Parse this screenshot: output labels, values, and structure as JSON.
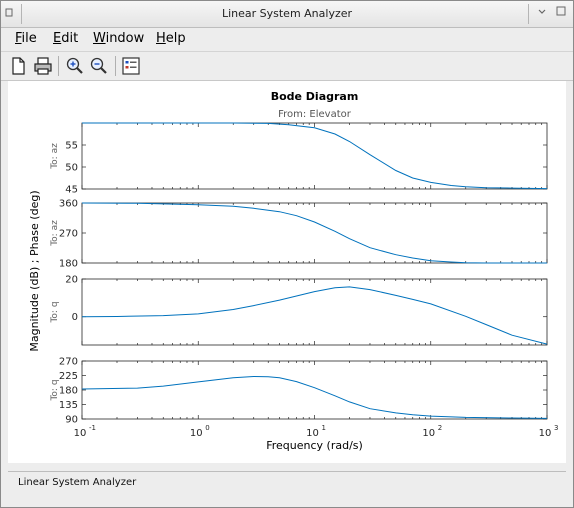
{
  "window": {
    "title": "Linear System Analyzer",
    "menu": [
      {
        "label": "File",
        "mnemonic": "F",
        "rest": "ile"
      },
      {
        "label": "Edit",
        "mnemonic": "E",
        "rest": "dit"
      },
      {
        "label": "Window",
        "mnemonic": "W",
        "rest": "indow"
      },
      {
        "label": "Help",
        "mnemonic": "H",
        "rest": "elp"
      }
    ],
    "toolbar": [
      "new-file-icon",
      "print-icon",
      "zoom-in-icon",
      "zoom-out-icon",
      "legend-icon"
    ],
    "status": "Linear System Analyzer"
  },
  "chart_data": {
    "type": "line",
    "title": "Bode Diagram",
    "subtitle": "From: Elevator",
    "xlabel": "Frequency  (rad/s)",
    "ylabel": "Magnitude (dB) ; Phase (deg)",
    "xscale": "log",
    "xlim": [
      0.1,
      1000
    ],
    "xticks": [
      0.1,
      1,
      10,
      100,
      1000
    ],
    "xtick_labels": [
      "10",
      "10",
      "10",
      "10",
      "10"
    ],
    "xtick_exponents": [
      "-1",
      "0",
      "1",
      "2",
      "3"
    ],
    "line_color": "#0072bd",
    "grid": false,
    "panels": [
      {
        "name": "To: az",
        "quantity": "magnitude",
        "ylim": [
          45,
          60
        ],
        "yticks": [
          45,
          50,
          55
        ],
        "x": [
          0.1,
          1,
          2,
          4,
          6,
          10,
          15,
          20,
          30,
          50,
          70,
          100,
          150,
          200,
          300,
          500,
          1000
        ],
        "y": [
          60,
          60,
          60,
          59.9,
          59.6,
          58.9,
          57.5,
          55.8,
          52.8,
          49.2,
          47.5,
          46.5,
          45.8,
          45.5,
          45.3,
          45.2,
          45.1
        ]
      },
      {
        "name": "To: az",
        "quantity": "phase",
        "ylim": [
          180,
          360
        ],
        "yticks": [
          180,
          270,
          360
        ],
        "x": [
          0.1,
          0.3,
          1,
          2,
          3,
          5,
          7,
          10,
          15,
          20,
          30,
          50,
          70,
          100,
          150,
          200,
          300,
          500,
          1000
        ],
        "y": [
          360,
          359,
          355,
          350,
          344,
          334,
          322,
          303,
          275,
          253,
          226,
          205,
          195,
          187,
          183,
          181,
          180,
          180,
          180
        ]
      },
      {
        "name": "To: q",
        "quantity": "magnitude",
        "ylim": [
          -15,
          20
        ],
        "yticks": [
          0,
          20
        ],
        "x": [
          0.1,
          0.2,
          0.5,
          1,
          2,
          3,
          5,
          7,
          10,
          15,
          20,
          30,
          50,
          70,
          100,
          200,
          300,
          500,
          1000
        ],
        "y": [
          0,
          0.1,
          0.6,
          1.5,
          3.8,
          5.9,
          8.8,
          11,
          13.3,
          15.4,
          15.8,
          14.4,
          11.3,
          9.2,
          6.8,
          0.2,
          -4.2,
          -9.8,
          -14.5
        ]
      },
      {
        "name": "To: q",
        "quantity": "phase",
        "ylim": [
          90,
          270
        ],
        "yticks": [
          90,
          135,
          180,
          225,
          270
        ],
        "x": [
          0.1,
          0.3,
          0.5,
          1,
          2,
          3,
          4,
          5,
          7,
          10,
          15,
          20,
          30,
          50,
          70,
          100,
          200,
          500,
          1000
        ],
        "y": [
          183,
          186,
          192,
          205,
          218,
          222,
          221,
          218,
          206,
          187,
          162,
          143,
          122,
          109,
          103,
          99,
          95,
          93,
          92
        ]
      }
    ]
  }
}
